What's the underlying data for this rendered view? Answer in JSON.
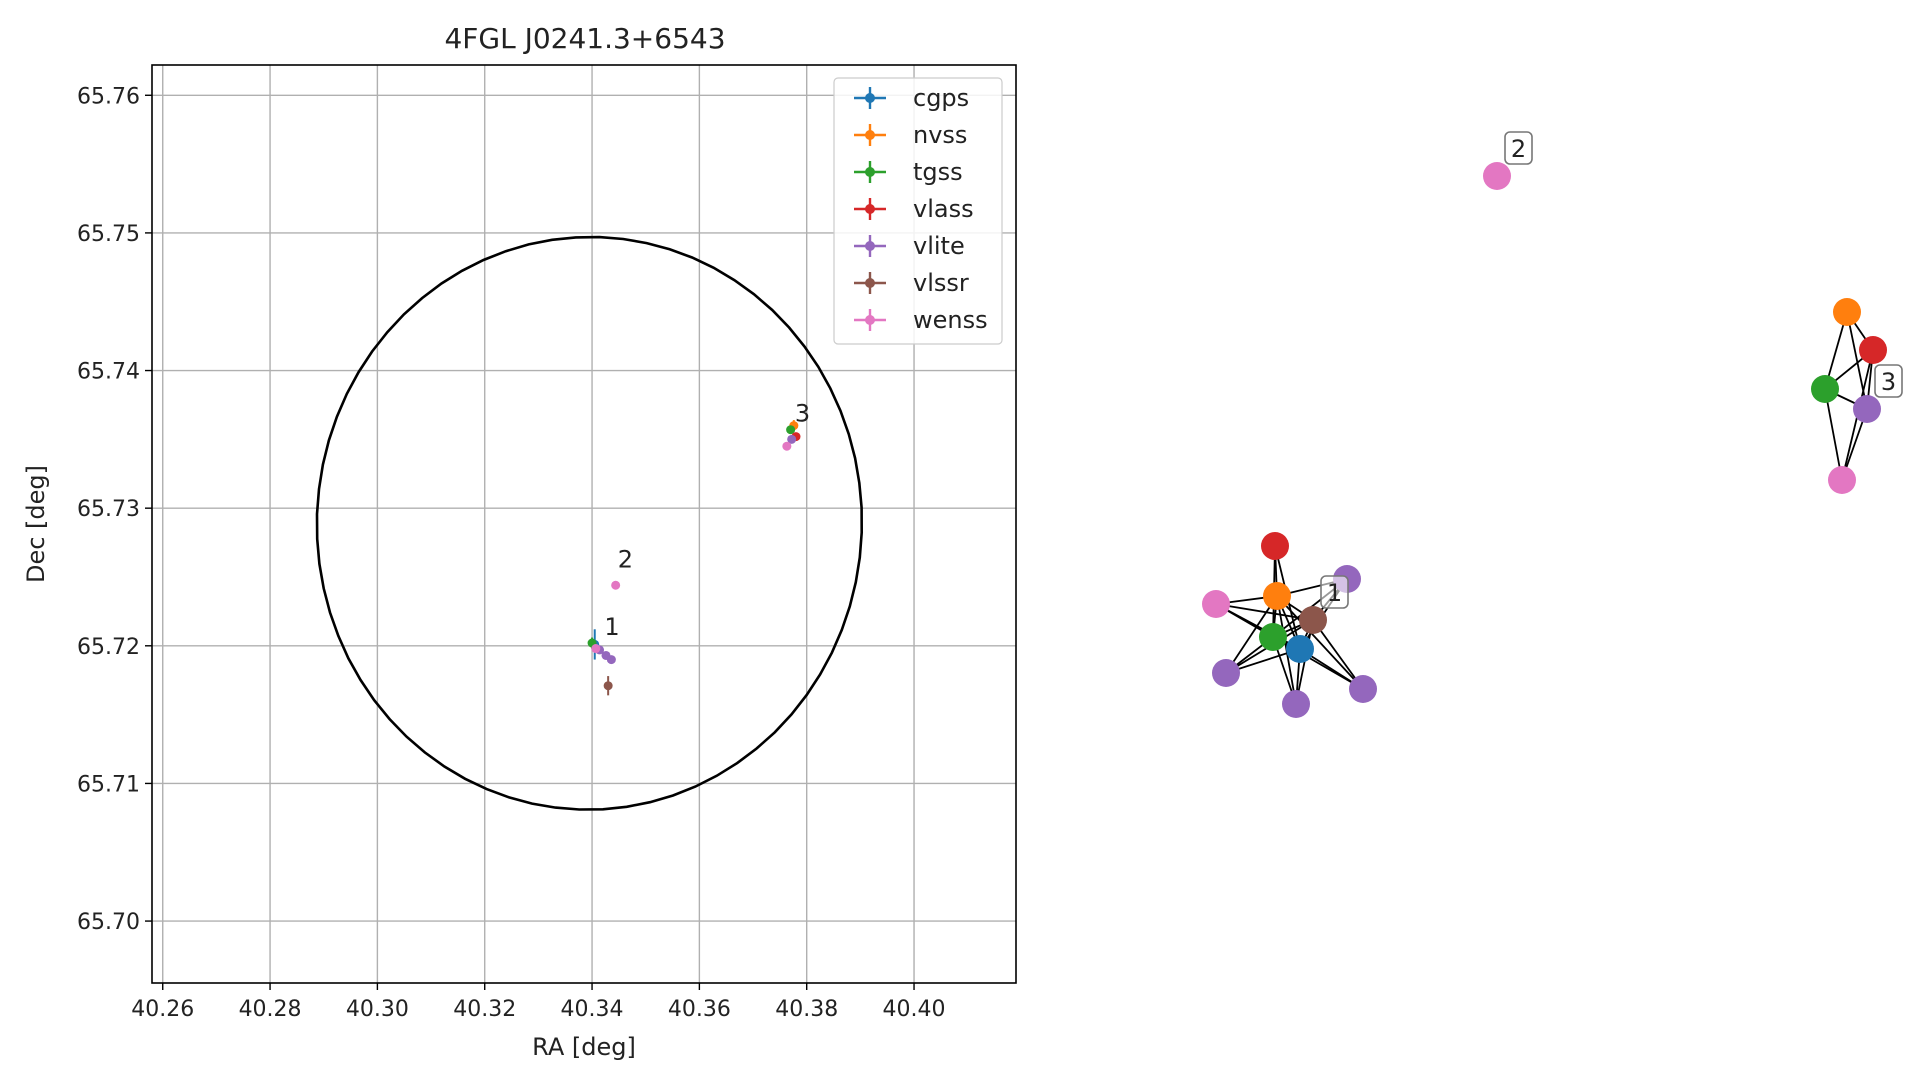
{
  "colors": {
    "cgps": "#1f77b4",
    "nvss": "#ff7f0e",
    "tgss": "#2ca02c",
    "vlass": "#d62728",
    "vlite": "#9467bd",
    "vlssr": "#8c564b",
    "wenss": "#e377c2",
    "grid": "#b0b0b0",
    "axes": "#000000"
  },
  "chart_data": [
    {
      "type": "scatter",
      "title": "4FGL J0241.3+6543",
      "xlabel": "RA [deg]",
      "ylabel": "Dec [deg]",
      "xlim": [
        40.258,
        40.419
      ],
      "ylim": [
        65.6955,
        65.7622
      ],
      "xticks": [
        "40.26",
        "40.28",
        "40.30",
        "40.32",
        "40.34",
        "40.36",
        "40.38",
        "40.40"
      ],
      "yticks": [
        "65.70",
        "65.71",
        "65.72",
        "65.73",
        "65.74",
        "65.75",
        "65.76"
      ],
      "grid": true,
      "legend_position": "upper right",
      "ellipse": {
        "center_ra": 40.3395,
        "center_dec": 65.7289,
        "semi_axis_ra_deg": 0.0508,
        "semi_axis_dec_deg": 0.0208,
        "angle_deg": 8
      },
      "series": [
        {
          "name": "cgps",
          "points": [
            {
              "x": 40.3405,
              "y": 65.7201,
              "xerr": 0.0002,
              "yerr": 0.0011
            }
          ]
        },
        {
          "name": "nvss",
          "points": [
            {
              "x": 40.3776,
              "y": 65.736,
              "xerr": 0.0003,
              "yerr": 0.0004
            }
          ]
        },
        {
          "name": "tgss",
          "points": [
            {
              "x": 40.34,
              "y": 65.7202,
              "xerr": 0.0006,
              "yerr": 0.0004
            },
            {
              "x": 40.377,
              "y": 65.7357,
              "xerr": 0.0005,
              "yerr": 0.0003
            }
          ]
        },
        {
          "name": "vlass",
          "points": [
            {
              "x": 40.378,
              "y": 65.7352,
              "xerr": 0.0001,
              "yerr": 0.0001
            }
          ]
        },
        {
          "name": "vlite",
          "points": [
            {
              "x": 40.3414,
              "y": 65.7197,
              "xerr": 0.0003,
              "yerr": 0.0002
            },
            {
              "x": 40.3426,
              "y": 65.7193,
              "xerr": 0.0003,
              "yerr": 0.0002
            },
            {
              "x": 40.3436,
              "y": 65.719,
              "xerr": 0.0003,
              "yerr": 0.0002
            },
            {
              "x": 40.3772,
              "y": 65.735,
              "xerr": 0.0003,
              "yerr": 0.0002
            }
          ]
        },
        {
          "name": "vlssr",
          "points": [
            {
              "x": 40.343,
              "y": 65.7171,
              "xerr": 0.0002,
              "yerr": 0.0007
            }
          ]
        },
        {
          "name": "wenss",
          "points": [
            {
              "x": 40.3407,
              "y": 65.7198,
              "xerr": 0.0006,
              "yerr": 0.0003
            },
            {
              "x": 40.3444,
              "y": 65.7244,
              "xerr": 0.0003,
              "yerr": 0.0002
            },
            {
              "x": 40.3763,
              "y": 65.7345,
              "xerr": 0.0003,
              "yerr": 0.0002
            }
          ]
        }
      ],
      "annotations": [
        {
          "text": "1",
          "x": 40.3423,
          "y": 65.7208
        },
        {
          "text": "2",
          "x": 40.3448,
          "y": 65.7257
        },
        {
          "text": "3",
          "x": 40.3778,
          "y": 65.7363
        }
      ]
    },
    {
      "type": "network",
      "nodes": [
        {
          "id": "2-wenss",
          "series": "wenss",
          "label": "2"
        },
        {
          "id": "3-nvss",
          "series": "nvss"
        },
        {
          "id": "3-vlass",
          "series": "vlass"
        },
        {
          "id": "3-tgss",
          "series": "tgss"
        },
        {
          "id": "3-vlite",
          "series": "vlite",
          "label": "3"
        },
        {
          "id": "3-wenss",
          "series": "wenss"
        },
        {
          "id": "1-vlass",
          "series": "vlass"
        },
        {
          "id": "1-vlite-a",
          "series": "vlite"
        },
        {
          "id": "1-wenss",
          "series": "wenss"
        },
        {
          "id": "1-nvss",
          "series": "nvss"
        },
        {
          "id": "1-vlssr",
          "series": "vlssr",
          "label": "1"
        },
        {
          "id": "1-tgss",
          "series": "tgss"
        },
        {
          "id": "1-cgps",
          "series": "cgps"
        },
        {
          "id": "1-vlite-b",
          "series": "vlite"
        },
        {
          "id": "1-vlite-c",
          "series": "vlite"
        },
        {
          "id": "1-vlite-d",
          "series": "vlite"
        }
      ],
      "edges": [
        [
          "3-nvss",
          "3-vlass"
        ],
        [
          "3-nvss",
          "3-tgss"
        ],
        [
          "3-nvss",
          "3-vlite"
        ],
        [
          "3-vlass",
          "3-tgss"
        ],
        [
          "3-vlass",
          "3-vlite"
        ],
        [
          "3-vlass",
          "3-wenss"
        ],
        [
          "3-tgss",
          "3-vlite"
        ],
        [
          "3-tgss",
          "3-wenss"
        ],
        [
          "3-vlite",
          "3-wenss"
        ],
        [
          "1-vlass",
          "1-nvss"
        ],
        [
          "1-vlass",
          "1-tgss"
        ],
        [
          "1-vlass",
          "1-cgps"
        ],
        [
          "1-vlite-a",
          "1-nvss"
        ],
        [
          "1-vlite-a",
          "1-tgss"
        ],
        [
          "1-vlite-a",
          "1-cgps"
        ],
        [
          "1-vlite-a",
          "1-vlssr"
        ],
        [
          "1-wenss",
          "1-nvss"
        ],
        [
          "1-wenss",
          "1-tgss"
        ],
        [
          "1-wenss",
          "1-cgps"
        ],
        [
          "1-wenss",
          "1-vlssr"
        ],
        [
          "1-nvss",
          "1-tgss"
        ],
        [
          "1-nvss",
          "1-cgps"
        ],
        [
          "1-nvss",
          "1-vlssr"
        ],
        [
          "1-nvss",
          "1-vlite-b"
        ],
        [
          "1-nvss",
          "1-vlite-c"
        ],
        [
          "1-nvss",
          "1-vlite-d"
        ],
        [
          "1-tgss",
          "1-cgps"
        ],
        [
          "1-tgss",
          "1-vlssr"
        ],
        [
          "1-tgss",
          "1-vlite-b"
        ],
        [
          "1-tgss",
          "1-vlite-c"
        ],
        [
          "1-tgss",
          "1-vlite-d"
        ],
        [
          "1-cgps",
          "1-vlssr"
        ],
        [
          "1-cgps",
          "1-vlite-b"
        ],
        [
          "1-cgps",
          "1-vlite-c"
        ],
        [
          "1-cgps",
          "1-vlite-d"
        ],
        [
          "1-vlssr",
          "1-vlite-b"
        ],
        [
          "1-vlssr",
          "1-vlite-c"
        ],
        [
          "1-vlssr",
          "1-vlite-d"
        ]
      ]
    }
  ]
}
